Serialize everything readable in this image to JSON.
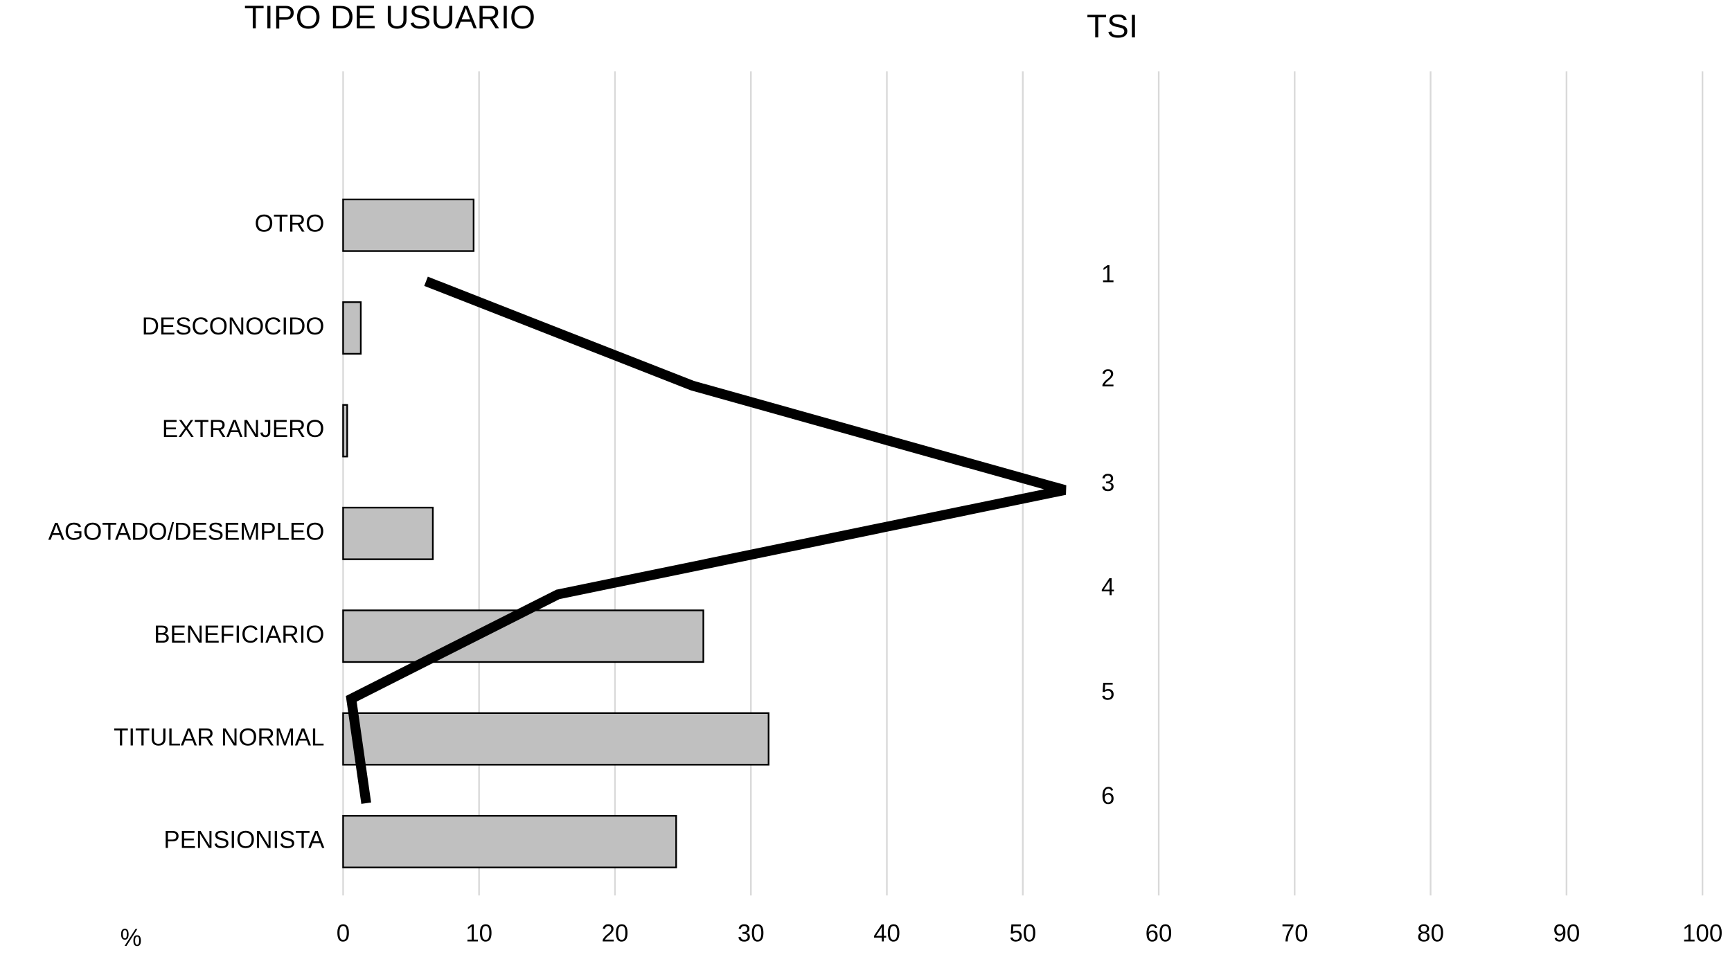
{
  "chart_data": [
    {
      "type": "bar",
      "title": "TIPO DE USUARIO",
      "xlabel": "%",
      "categories": [
        "OTRO",
        "DESCONOCIDO",
        "EXTRANJERO",
        "AGOTADO/DESEMPLEO",
        "BENEFICIARIO",
        "TITULAR NORMAL",
        "PENSIONISTA"
      ],
      "values": [
        9.6,
        1.3,
        0.3,
        6.6,
        26.5,
        31.3,
        24.5
      ],
      "color": "#c0c0c0",
      "xlim": [
        0,
        100
      ],
      "xticks": [
        0,
        10,
        20,
        30,
        40,
        50,
        60,
        70,
        80,
        90,
        100
      ],
      "grid": true
    },
    {
      "type": "line",
      "title": "TSI",
      "categories": [
        "1",
        "2",
        "3",
        "4",
        "5",
        "6"
      ],
      "values": [
        6.1,
        25.7,
        53.1,
        15.8,
        0.6,
        1.7
      ],
      "color": "#000000"
    }
  ]
}
